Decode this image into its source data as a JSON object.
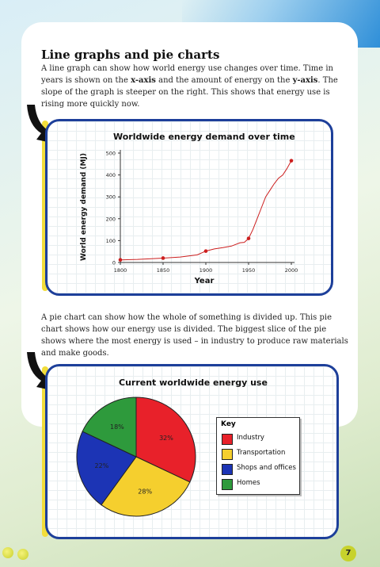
{
  "page": {
    "title": "Line graphs and pie charts",
    "paragraph1_parts": [
      "A line graph can show how world energy use changes over time. Time in years is shown on the ",
      "x-axis",
      " and the amount of energy on the ",
      "y-axis",
      ". The slope of the graph is steeper on the right. This shows that energy use is rising more quickly now."
    ],
    "paragraph2": "A pie chart can show how the whole of something is divided up. This pie chart shows how our energy use is divided. The biggest slice of the pie shows where the most energy is used – in industry to produce raw materials and make goods.",
    "page_number": "7"
  },
  "chart_data": [
    {
      "type": "line",
      "title": "Worldwide energy demand over time",
      "xlabel": "Year",
      "ylabel": "World energy demand (MJ)",
      "xlim": [
        1800,
        2000
      ],
      "ylim": [
        0,
        500
      ],
      "xticks": [
        1800,
        1850,
        1900,
        1950,
        2000
      ],
      "yticks": [
        0,
        100,
        200,
        300,
        400,
        500
      ],
      "color": "#cc1f1f",
      "x": [
        1800,
        1820,
        1850,
        1870,
        1890,
        1900,
        1910,
        1920,
        1930,
        1940,
        1945,
        1950,
        1955,
        1960,
        1965,
        1970,
        1975,
        1980,
        1985,
        1990,
        1995,
        2000
      ],
      "y": [
        12,
        14,
        20,
        25,
        35,
        52,
        62,
        68,
        75,
        90,
        92,
        110,
        150,
        200,
        250,
        300,
        330,
        360,
        385,
        400,
        430,
        465
      ],
      "marked_x": [
        1800,
        1850,
        1900,
        1950,
        2000
      ],
      "marked_y": [
        12,
        20,
        52,
        110,
        465
      ]
    },
    {
      "type": "pie",
      "title": "Current worldwide energy use",
      "legend_title": "Key",
      "legend_position": "right",
      "slices": [
        {
          "label": "Industry",
          "value": 32,
          "display": "32%",
          "color": "#e8212a"
        },
        {
          "label": "Transportation",
          "value": 28,
          "display": "28%",
          "color": "#f5cf2e"
        },
        {
          "label": "Shops and offices",
          "value": 22,
          "display": "22%",
          "color": "#1c34b5"
        },
        {
          "label": "Homes",
          "value": 18,
          "display": "18%",
          "color": "#2e9a3c"
        }
      ]
    }
  ]
}
